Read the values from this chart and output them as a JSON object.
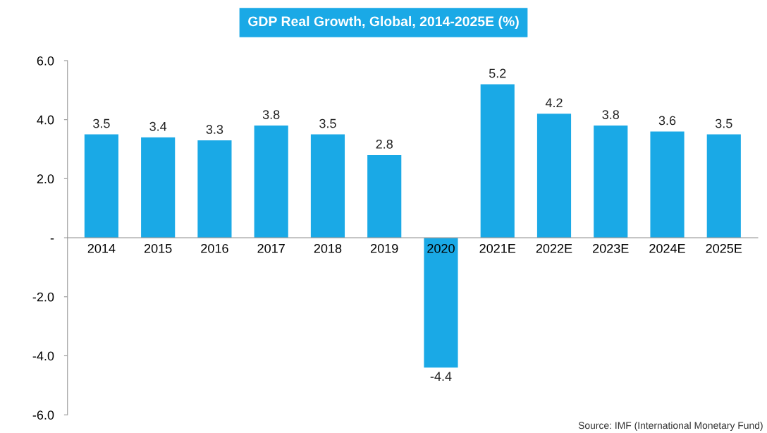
{
  "chart_data": {
    "type": "bar",
    "title": "GDP Real Growth, Global, 2014-2025E (%)",
    "categories": [
      "2014",
      "2015",
      "2016",
      "2017",
      "2018",
      "2019",
      "2020",
      "2021E",
      "2022E",
      "2023E",
      "2024E",
      "2025E"
    ],
    "values": [
      3.5,
      3.4,
      3.3,
      3.8,
      3.5,
      2.8,
      -4.4,
      5.2,
      4.2,
      3.8,
      3.6,
      3.5
    ],
    "color": "#1aa9e6",
    "ylim": [
      -6,
      6
    ],
    "yticks": [
      {
        "value": 6,
        "label": "6.0"
      },
      {
        "value": 4,
        "label": "4.0"
      },
      {
        "value": 2,
        "label": "2.0"
      },
      {
        "value": 0,
        "label": "-"
      },
      {
        "value": -2,
        "label": "-2.0"
      },
      {
        "value": -4,
        "label": "-4.0"
      },
      {
        "value": -6,
        "label": "-6.0"
      }
    ],
    "data_labels": true,
    "grid": false,
    "annotations": [
      "Source: IMF (International Monetary Fund)"
    ]
  }
}
